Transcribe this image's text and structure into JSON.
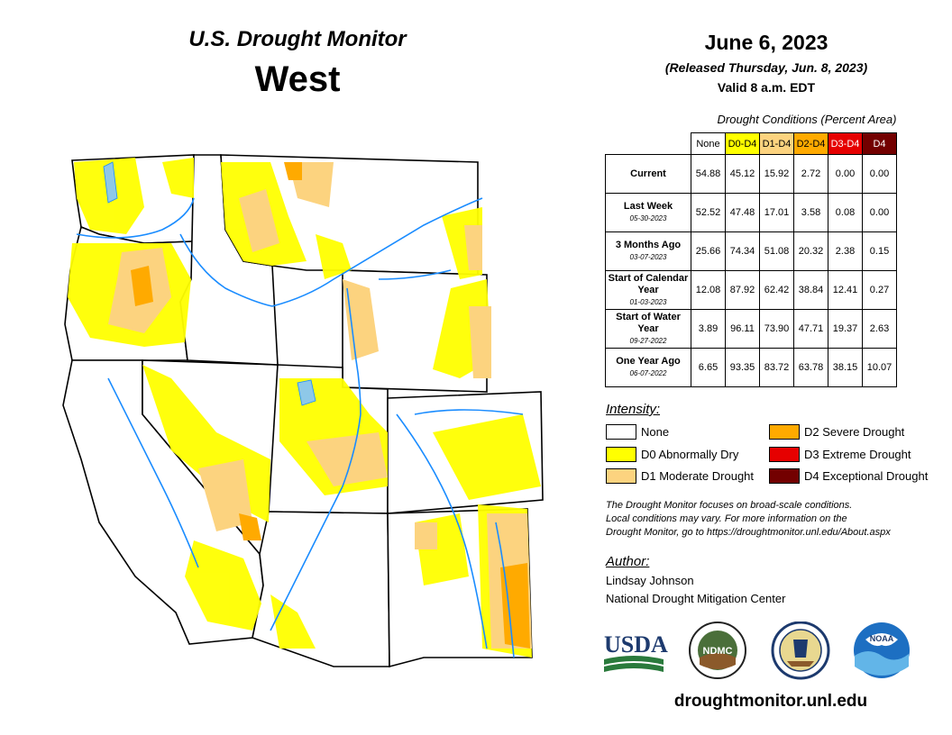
{
  "header": {
    "title": "U.S. Drought Monitor",
    "region": "West",
    "date": "June 6, 2023",
    "released": "(Released Thursday, Jun. 8, 2023)",
    "valid": "Valid 8 a.m. EDT"
  },
  "table": {
    "title": "Drought Conditions (Percent Area)",
    "columns": [
      "None",
      "D0-D4",
      "D1-D4",
      "D2-D4",
      "D3-D4",
      "D4"
    ],
    "column_colors": [
      "#ffffff",
      "#ffff00",
      "#fcd37f",
      "#ffaa00",
      "#e60000",
      "#730000"
    ],
    "rows": [
      {
        "label": "Current",
        "date": "",
        "values": [
          "54.88",
          "45.12",
          "15.92",
          "2.72",
          "0.00",
          "0.00"
        ]
      },
      {
        "label": "Last Week",
        "date": "05-30-2023",
        "values": [
          "52.52",
          "47.48",
          "17.01",
          "3.58",
          "0.08",
          "0.00"
        ]
      },
      {
        "label": "3 Months Ago",
        "date": "03-07-2023",
        "values": [
          "25.66",
          "74.34",
          "51.08",
          "20.32",
          "2.38",
          "0.15"
        ]
      },
      {
        "label": "Start of Calendar Year",
        "date": "01-03-2023",
        "values": [
          "12.08",
          "87.92",
          "62.42",
          "38.84",
          "12.41",
          "0.27"
        ]
      },
      {
        "label": "Start of Water Year",
        "date": "09-27-2022",
        "values": [
          "3.89",
          "96.11",
          "73.90",
          "47.71",
          "19.37",
          "2.63"
        ]
      },
      {
        "label": "One Year Ago",
        "date": "06-07-2022",
        "values": [
          "6.65",
          "93.35",
          "83.72",
          "63.78",
          "38.15",
          "10.07"
        ]
      }
    ]
  },
  "legend": {
    "title": "Intensity:",
    "items": [
      {
        "label": "None",
        "color": "#ffffff"
      },
      {
        "label": "D0 Abnormally Dry",
        "color": "#ffff00"
      },
      {
        "label": "D1 Moderate Drought",
        "color": "#fcd37f"
      },
      {
        "label": "D2 Severe Drought",
        "color": "#ffaa00"
      },
      {
        "label": "D3 Extreme Drought",
        "color": "#e60000"
      },
      {
        "label": "D4 Exceptional Drought",
        "color": "#730000"
      }
    ]
  },
  "note": {
    "line1": "The Drought Monitor focuses on broad-scale conditions.",
    "line2": "Local conditions may vary. For more information on the",
    "line3": "Drought Monitor, go to https://droughtmonitor.unl.edu/About.aspx"
  },
  "author": {
    "title": "Author:",
    "name": "Lindsay Johnson",
    "org": "National Drought Mitigation Center"
  },
  "logos": {
    "usda": "USDA",
    "ndmc": "NDMC",
    "noaa": "NOAA"
  },
  "map": {
    "colors": {
      "water": "#8ec8e8",
      "river": "#1a8cff",
      "d0": "#ffff00",
      "d1": "#fcd37f",
      "d2": "#ffaa00"
    }
  },
  "website": "droughtmonitor.unl.edu"
}
